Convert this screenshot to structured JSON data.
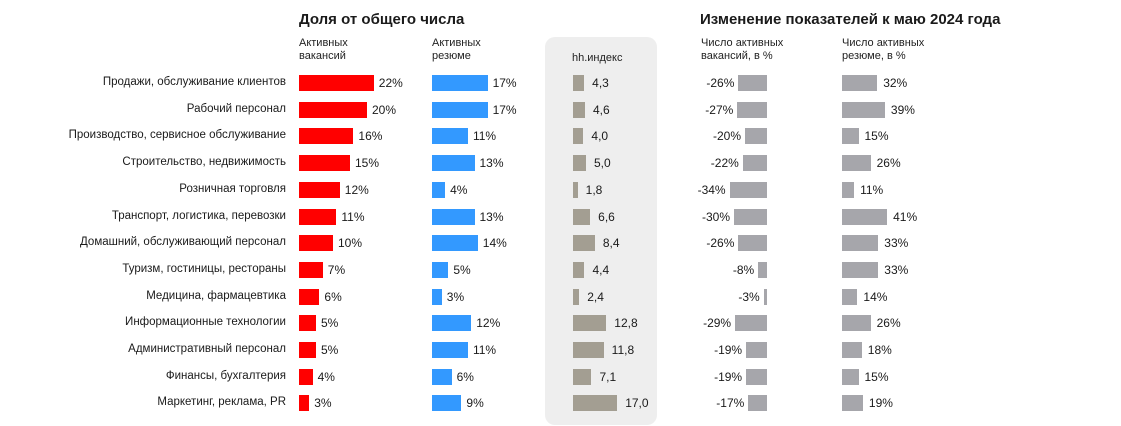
{
  "chart_data": {
    "type": "bar",
    "titles": {
      "left": "Доля от общего числа",
      "right": "Изменение показателей к маю 2024 года"
    },
    "column_headers": {
      "vacancies_share": "Активных\nвакансий",
      "resumes_share": "Активных\nрезюме",
      "hh_index": "hh.индекс",
      "vacancies_change": "Число активных\nвакансий, в %",
      "resumes_change": "Число активных\nрезюме, в %"
    },
    "colors": {
      "vacancies": "#ff0000",
      "resumes": "#3399ff",
      "hh_index": "#a39e92",
      "change": "#a6a6ab",
      "panel": "#eeeeee"
    },
    "categories": [
      "Продажи, обслуживание клиентов",
      "Рабочий персонал",
      "Производство, сервисное обслуживание",
      "Строительство, недвижимость",
      "Розничная торговля",
      "Транспорт, логистика, перевозки",
      "Домашний, обслуживающий персонал",
      "Туризм, гостиницы, рестораны",
      "Медицина, фармацевтика",
      "Информационные технологии",
      "Административный персонал",
      "Финансы, бухгалтерия",
      "Маркетинг, реклама, PR"
    ],
    "series": [
      {
        "key": "vacancies_share",
        "values": [
          22,
          20,
          16,
          15,
          12,
          11,
          10,
          7,
          6,
          5,
          5,
          4,
          3
        ],
        "labels": [
          "22%",
          "20%",
          "16%",
          "15%",
          "12%",
          "11%",
          "10%",
          "7%",
          "6%",
          "5%",
          "5%",
          "4%",
          "3%"
        ]
      },
      {
        "key": "resumes_share",
        "values": [
          17,
          17,
          11,
          13,
          4,
          13,
          14,
          5,
          3,
          12,
          11,
          6,
          9
        ],
        "labels": [
          "17%",
          "17%",
          "11%",
          "13%",
          "4%",
          "13%",
          "14%",
          "5%",
          "3%",
          "12%",
          "11%",
          "6%",
          "9%"
        ]
      },
      {
        "key": "hh_index",
        "values": [
          4.3,
          4.6,
          4.0,
          5.0,
          1.8,
          6.6,
          8.4,
          4.4,
          2.4,
          12.8,
          11.8,
          7.1,
          17.0
        ],
        "labels": [
          "4,3",
          "4,6",
          "4,0",
          "5,0",
          "1,8",
          "6,6",
          "8,4",
          "4,4",
          "2,4",
          "12,8",
          "11,8",
          "7,1",
          "17,0"
        ]
      },
      {
        "key": "vacancies_change",
        "values": [
          -26,
          -27,
          -20,
          -22,
          -34,
          -30,
          -26,
          -8,
          -3,
          -29,
          -19,
          -19,
          -17
        ],
        "labels": [
          "-26%",
          "-27%",
          "-20%",
          "-22%",
          "-34%",
          "-30%",
          "-26%",
          "-8%",
          "-3%",
          "-29%",
          "-19%",
          "-19%",
          "-17%"
        ]
      },
      {
        "key": "resumes_change",
        "values": [
          32,
          39,
          15,
          26,
          11,
          41,
          33,
          33,
          14,
          26,
          18,
          15,
          19
        ],
        "labels": [
          "32%",
          "39%",
          "15%",
          "26%",
          "11%",
          "41%",
          "33%",
          "33%",
          "14%",
          "26%",
          "18%",
          "15%",
          "19%"
        ]
      }
    ]
  }
}
